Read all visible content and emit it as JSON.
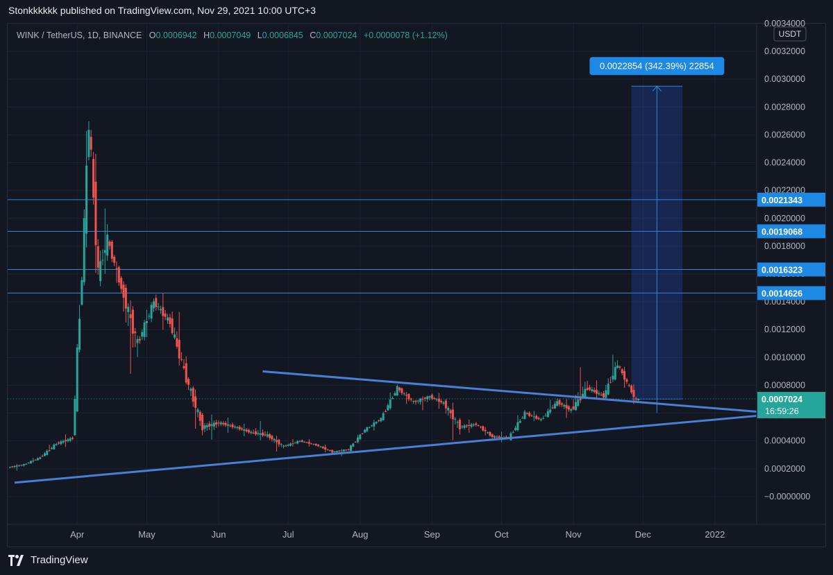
{
  "header": {
    "text": "Stonkkkkkk published on TradingView.com, Nov 29, 2021 10:00 UTC+3"
  },
  "legend": {
    "symbol": "WINK / TetherUS, 1D, BINANCE",
    "open_label": "O",
    "open": "0.0006942",
    "high_label": "H",
    "high": "0.0007049",
    "low_label": "L",
    "low": "0.0006845",
    "close_label": "C",
    "close": "0.0007024",
    "change": "+0.0000078 (+1.12%)"
  },
  "footer": {
    "brand": "TradingView"
  },
  "colors": {
    "up": "#26a69a",
    "down": "#ef5350",
    "trendline": "#4a7fd6",
    "hline": "#2f88d9",
    "grid": "#1e2230",
    "axis_text": "#b2b5be",
    "measure_box": "rgba(41,98,255,0.22)",
    "label_bg": "#1e88e5"
  },
  "chart_data": {
    "type": "candlestick",
    "currency_label": "USDT",
    "y_ticks": [
      {
        "v": 0.0034,
        "label": "0.0034000"
      },
      {
        "v": 0.0032,
        "label": "0.0032000"
      },
      {
        "v": 0.003,
        "label": "0.0030000"
      },
      {
        "v": 0.0028,
        "label": "0.0028000"
      },
      {
        "v": 0.0026,
        "label": "0.0026000"
      },
      {
        "v": 0.0024,
        "label": "0.0024000"
      },
      {
        "v": 0.0022,
        "label": "0.0022000"
      },
      {
        "v": 0.002,
        "label": "0.0020000"
      },
      {
        "v": 0.0018,
        "label": "0.0018000"
      },
      {
        "v": 0.0016,
        "label": "0.0016000"
      },
      {
        "v": 0.0014,
        "label": "0.0014000"
      },
      {
        "v": 0.0012,
        "label": "0.0012000"
      },
      {
        "v": 0.001,
        "label": "0.0010000"
      },
      {
        "v": 0.0008,
        "label": "0.0008000"
      },
      {
        "v": 0.0006,
        "label": "0.0006000"
      },
      {
        "v": 0.0004,
        "label": "0.0004000"
      },
      {
        "v": 0.0002,
        "label": "0.0002000"
      },
      {
        "v": 0.0,
        "label": "−0.0000000"
      }
    ],
    "x_ticks": [
      {
        "date": "2021-04-01",
        "label": "Apr"
      },
      {
        "date": "2021-05-01",
        "label": "May"
      },
      {
        "date": "2021-06-01",
        "label": "Jun"
      },
      {
        "date": "2021-07-01",
        "label": "Jul"
      },
      {
        "date": "2021-08-01",
        "label": "Aug"
      },
      {
        "date": "2021-09-01",
        "label": "Sep"
      },
      {
        "date": "2021-10-01",
        "label": "Oct"
      },
      {
        "date": "2021-11-01",
        "label": "Nov"
      },
      {
        "date": "2021-12-01",
        "label": "Dec"
      },
      {
        "date": "2022-01-01",
        "label": "2022"
      }
    ],
    "ylim": [
      -0.0002,
      0.0034
    ],
    "xlim": [
      "2021-03-02",
      "2022-01-19"
    ],
    "candles_weekly": [
      {
        "date": "2021-03-03",
        "o": 0.00021,
        "h": 0.00024,
        "l": 0.00018,
        "c": 0.00023
      },
      {
        "date": "2021-03-10",
        "o": 0.00023,
        "h": 0.0003,
        "l": 0.00022,
        "c": 0.00028
      },
      {
        "date": "2021-03-17",
        "o": 0.00028,
        "h": 0.00042,
        "l": 0.00027,
        "c": 0.00038
      },
      {
        "date": "2021-03-24",
        "o": 0.00038,
        "h": 0.00046,
        "l": 0.00034,
        "c": 0.00042
      },
      {
        "date": "2021-03-31",
        "o": 0.00042,
        "h": 0.0017,
        "l": 0.0004,
        "c": 0.0016
      },
      {
        "date": "2021-04-04",
        "o": 0.0016,
        "h": 0.00295,
        "l": 0.0015,
        "c": 0.0027
      },
      {
        "date": "2021-04-07",
        "o": 0.0027,
        "h": 0.0029,
        "l": 0.0014,
        "c": 0.0016
      },
      {
        "date": "2021-04-11",
        "o": 0.0016,
        "h": 0.00215,
        "l": 0.00145,
        "c": 0.00185
      },
      {
        "date": "2021-04-15",
        "o": 0.00185,
        "h": 0.0019,
        "l": 0.0014,
        "c": 0.0015
      },
      {
        "date": "2021-04-21",
        "o": 0.0015,
        "h": 0.0016,
        "l": 0.0007,
        "c": 0.0011
      },
      {
        "date": "2021-04-28",
        "o": 0.0011,
        "h": 0.00148,
        "l": 0.001,
        "c": 0.0014
      },
      {
        "date": "2021-05-05",
        "o": 0.0014,
        "h": 0.0015,
        "l": 0.00115,
        "c": 0.00125
      },
      {
        "date": "2021-05-12",
        "o": 0.00125,
        "h": 0.00145,
        "l": 0.0008,
        "c": 0.00085
      },
      {
        "date": "2021-05-19",
        "o": 0.00085,
        "h": 0.0009,
        "l": 0.00035,
        "c": 0.0005
      },
      {
        "date": "2021-05-26",
        "o": 0.0005,
        "h": 0.0006,
        "l": 0.0004,
        "c": 0.00053
      },
      {
        "date": "2021-06-02",
        "o": 0.00053,
        "h": 0.00058,
        "l": 0.00045,
        "c": 0.0005
      },
      {
        "date": "2021-06-09",
        "o": 0.0005,
        "h": 0.00054,
        "l": 0.00042,
        "c": 0.00046
      },
      {
        "date": "2021-06-16",
        "o": 0.00046,
        "h": 0.00055,
        "l": 0.0004,
        "c": 0.00044
      },
      {
        "date": "2021-06-23",
        "o": 0.00044,
        "h": 0.00047,
        "l": 0.00029,
        "c": 0.00036
      },
      {
        "date": "2021-06-30",
        "o": 0.00036,
        "h": 0.00043,
        "l": 0.00034,
        "c": 0.0004
      },
      {
        "date": "2021-07-07",
        "o": 0.0004,
        "h": 0.00042,
        "l": 0.00035,
        "c": 0.00037
      },
      {
        "date": "2021-07-14",
        "o": 0.00037,
        "h": 0.00039,
        "l": 0.0003,
        "c": 0.00032
      },
      {
        "date": "2021-07-21",
        "o": 0.00032,
        "h": 0.00035,
        "l": 0.00028,
        "c": 0.00034
      },
      {
        "date": "2021-07-28",
        "o": 0.00034,
        "h": 0.0005,
        "l": 0.00033,
        "c": 0.00048
      },
      {
        "date": "2021-08-04",
        "o": 0.00048,
        "h": 0.00058,
        "l": 0.00045,
        "c": 0.00056
      },
      {
        "date": "2021-08-11",
        "o": 0.00056,
        "h": 0.00083,
        "l": 0.00055,
        "c": 0.00078
      },
      {
        "date": "2021-08-18",
        "o": 0.00078,
        "h": 0.0008,
        "l": 0.00062,
        "c": 0.00068
      },
      {
        "date": "2021-08-25",
        "o": 0.00068,
        "h": 0.00074,
        "l": 0.0006,
        "c": 0.00072
      },
      {
        "date": "2021-09-01",
        "o": 0.00072,
        "h": 0.00076,
        "l": 0.00062,
        "c": 0.00067
      },
      {
        "date": "2021-09-07",
        "o": 0.00067,
        "h": 0.00072,
        "l": 0.00035,
        "c": 0.0005
      },
      {
        "date": "2021-09-14",
        "o": 0.0005,
        "h": 0.00056,
        "l": 0.00045,
        "c": 0.00052
      },
      {
        "date": "2021-09-21",
        "o": 0.00052,
        "h": 0.00054,
        "l": 0.0004,
        "c": 0.00043
      },
      {
        "date": "2021-09-28",
        "o": 0.00043,
        "h": 0.00047,
        "l": 0.00039,
        "c": 0.00042
      },
      {
        "date": "2021-10-05",
        "o": 0.00042,
        "h": 0.00065,
        "l": 0.00041,
        "c": 0.0006
      },
      {
        "date": "2021-10-12",
        "o": 0.0006,
        "h": 0.00064,
        "l": 0.00052,
        "c": 0.00055
      },
      {
        "date": "2021-10-19",
        "o": 0.00055,
        "h": 0.00075,
        "l": 0.00054,
        "c": 0.00068
      },
      {
        "date": "2021-10-26",
        "o": 0.00068,
        "h": 0.00072,
        "l": 0.00055,
        "c": 0.00062
      },
      {
        "date": "2021-11-01",
        "o": 0.00062,
        "h": 0.00099,
        "l": 0.0006,
        "c": 0.00078
      },
      {
        "date": "2021-11-08",
        "o": 0.00078,
        "h": 0.00085,
        "l": 0.00068,
        "c": 0.00072
      },
      {
        "date": "2021-11-15",
        "o": 0.00072,
        "h": 0.0011,
        "l": 0.0007,
        "c": 0.00095
      },
      {
        "date": "2021-11-21",
        "o": 0.00095,
        "h": 0.00098,
        "l": 0.00076,
        "c": 0.00082
      },
      {
        "date": "2021-11-25",
        "o": 0.00082,
        "h": 0.00086,
        "l": 0.00064,
        "c": 0.00069
      },
      {
        "date": "2021-11-29",
        "o": 0.0006942,
        "h": 0.0007049,
        "l": 0.0006845,
        "c": 0.0007024
      }
    ],
    "horizontal_levels": [
      {
        "v": 0.0021343,
        "label": "0.0021343"
      },
      {
        "v": 0.0019068,
        "label": "0.0019068"
      },
      {
        "v": 0.0016323,
        "label": "0.0016323"
      },
      {
        "v": 0.0014626,
        "label": "0.0014626"
      }
    ],
    "trendlines": [
      {
        "from": {
          "date": "2021-03-05",
          "v": 0.0001
        },
        "to": {
          "date": "2022-01-19",
          "v": 0.00058
        }
      },
      {
        "from": {
          "date": "2021-06-20",
          "v": 0.0009
        },
        "to": {
          "date": "2022-01-19",
          "v": 0.00061
        }
      }
    ],
    "current_price": {
      "v": 0.0007024,
      "label": "0.0007024",
      "countdown": "16:59:26"
    },
    "measure": {
      "from_date": "2021-11-26",
      "to_date": "2021-12-18",
      "from_v": 0.0007,
      "to_v": 0.00295,
      "label": "0.0022854 (342.39%) 22854"
    }
  }
}
